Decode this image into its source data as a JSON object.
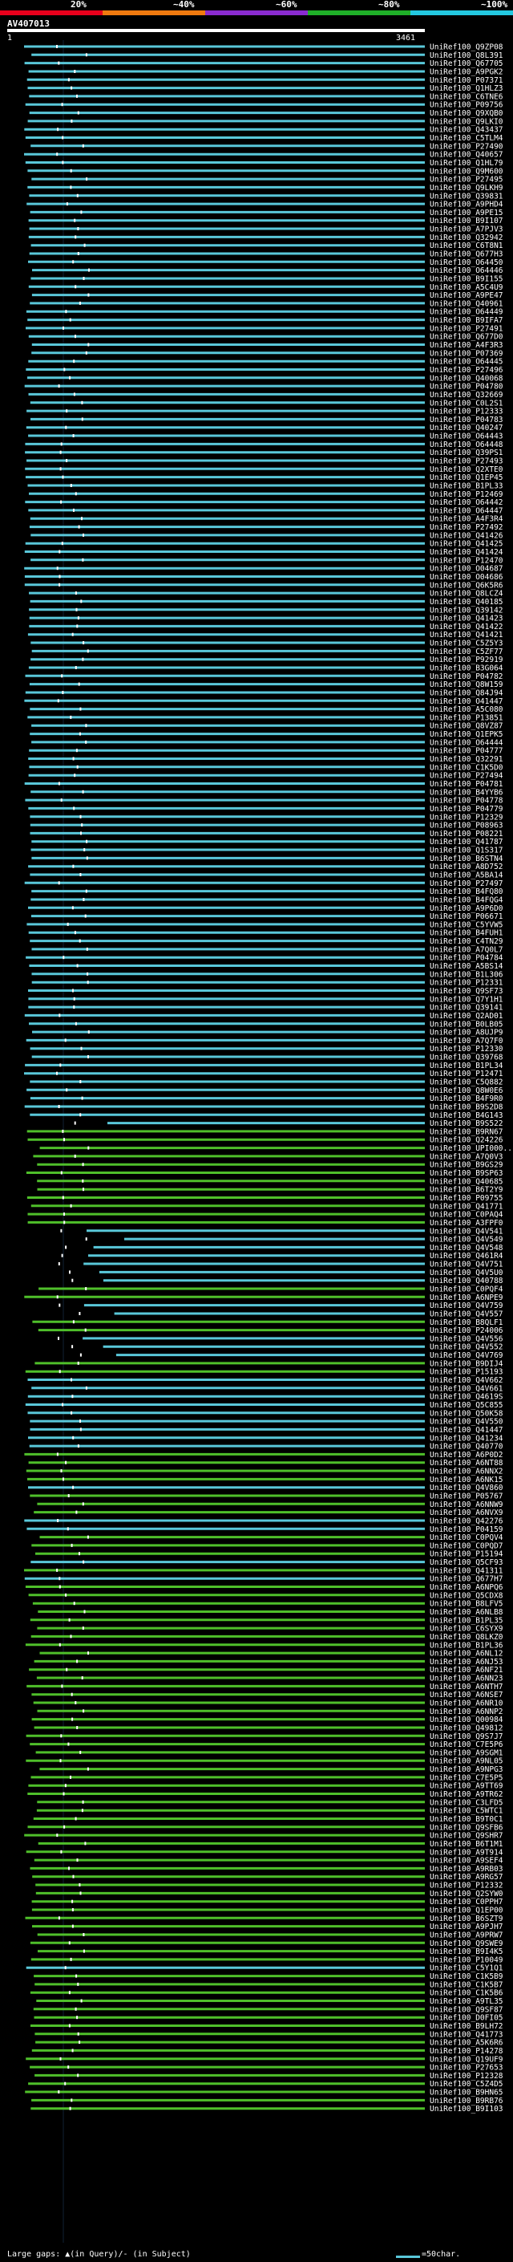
{
  "colorbar": {
    "segments": [
      {
        "label": "20%",
        "color": "#e8001c"
      },
      {
        "label": "~40%",
        "color": "#f07a0f"
      },
      {
        "label": "~60%",
        "color": "#8a2bd0"
      },
      {
        "label": "~80%",
        "color": "#1fb028"
      },
      {
        "label": "~100%",
        "color": "#23c8e0"
      }
    ]
  },
  "query": {
    "id": "AV407013",
    "start": "1",
    "end": "3461",
    "length": 3461
  },
  "hits": [
    {
      "name": "UniRef100_Q9ZP08",
      "type": "cyan"
    },
    {
      "name": "UniRef100_Q8L391",
      "type": "cyan"
    },
    {
      "name": "UniRef100_Q67705",
      "type": "cyan"
    },
    {
      "name": "UniRef100_A9PGK2",
      "type": "cyan"
    },
    {
      "name": "UniRef100_P07371",
      "type": "cyan"
    },
    {
      "name": "UniRef100_Q1HLZ3",
      "type": "cyan"
    },
    {
      "name": "UniRef100_C6TNE6",
      "type": "cyan"
    },
    {
      "name": "UniRef100_P09756",
      "type": "cyan"
    },
    {
      "name": "UniRef100_Q9XQB0",
      "type": "cyan"
    },
    {
      "name": "UniRef100_Q9LKI0",
      "type": "cyan"
    },
    {
      "name": "UniRef100_Q43437",
      "type": "cyan"
    },
    {
      "name": "UniRef100_C5TLM4",
      "type": "cyan"
    },
    {
      "name": "UniRef100_P27490",
      "type": "cyan"
    },
    {
      "name": "UniRef100_Q40657",
      "type": "cyan"
    },
    {
      "name": "UniRef100_Q1HL79",
      "type": "cyan"
    },
    {
      "name": "UniRef100_Q9M600",
      "type": "cyan"
    },
    {
      "name": "UniRef100_P27495",
      "type": "cyan"
    },
    {
      "name": "UniRef100_Q9LKH9",
      "type": "cyan"
    },
    {
      "name": "UniRef100_Q39831",
      "type": "cyan"
    },
    {
      "name": "UniRef100_A9PHD4",
      "type": "cyan"
    },
    {
      "name": "UniRef100_A9PE15",
      "type": "cyan"
    },
    {
      "name": "UniRef100_B9I107",
      "type": "cyan"
    },
    {
      "name": "UniRef100_A7PJV3",
      "type": "cyan"
    },
    {
      "name": "UniRef100_Q32942",
      "type": "cyan"
    },
    {
      "name": "UniRef100_C6T8N1",
      "type": "cyan"
    },
    {
      "name": "UniRef100_Q677H3",
      "type": "cyan"
    },
    {
      "name": "UniRef100_O64450",
      "type": "cyan"
    },
    {
      "name": "UniRef100_O64446",
      "type": "cyan"
    },
    {
      "name": "UniRef100_B9I155",
      "type": "cyan"
    },
    {
      "name": "UniRef100_A5C4U9",
      "type": "cyan"
    },
    {
      "name": "UniRef100_A9PE47",
      "type": "cyan"
    },
    {
      "name": "UniRef100_Q40961",
      "type": "cyan"
    },
    {
      "name": "UniRef100_O64449",
      "type": "cyan"
    },
    {
      "name": "UniRef100_B9IFA7",
      "type": "cyan"
    },
    {
      "name": "UniRef100_P27491",
      "type": "cyan"
    },
    {
      "name": "UniRef100_Q677D0",
      "type": "cyan"
    },
    {
      "name": "UniRef100_A4F3R3",
      "type": "cyan"
    },
    {
      "name": "UniRef100_P07369",
      "type": "cyan"
    },
    {
      "name": "UniRef100_O64445",
      "type": "cyan"
    },
    {
      "name": "UniRef100_P27496",
      "type": "cyan"
    },
    {
      "name": "UniRef100_Q40068",
      "type": "cyan"
    },
    {
      "name": "UniRef100_P04780",
      "type": "cyan"
    },
    {
      "name": "UniRef100_Q32669",
      "type": "cyan"
    },
    {
      "name": "UniRef100_C0L2S1",
      "type": "cyan"
    },
    {
      "name": "UniRef100_P12333",
      "type": "cyan"
    },
    {
      "name": "UniRef100_P04783",
      "type": "cyan"
    },
    {
      "name": "UniRef100_Q40247",
      "type": "cyan"
    },
    {
      "name": "UniRef100_O64443",
      "type": "cyan"
    },
    {
      "name": "UniRef100_O64448",
      "type": "cyan"
    },
    {
      "name": "UniRef100_Q39PS1",
      "type": "cyan"
    },
    {
      "name": "UniRef100_P27493",
      "type": "cyan"
    },
    {
      "name": "UniRef100_Q2XTE0",
      "type": "cyan"
    },
    {
      "name": "UniRef100_Q1EP45",
      "type": "cyan"
    },
    {
      "name": "UniRef100_B1PL33",
      "type": "cyan"
    },
    {
      "name": "UniRef100_P12469",
      "type": "cyan"
    },
    {
      "name": "UniRef100_O64442",
      "type": "cyan"
    },
    {
      "name": "UniRef100_O64447",
      "type": "cyan"
    },
    {
      "name": "UniRef100_A4F3R4",
      "type": "cyan"
    },
    {
      "name": "UniRef100_P27492",
      "type": "cyan"
    },
    {
      "name": "UniRef100_Q41426",
      "type": "cyan"
    },
    {
      "name": "UniRef100_Q41425",
      "type": "cyan"
    },
    {
      "name": "UniRef100_Q41424",
      "type": "cyan"
    },
    {
      "name": "UniRef100_P12470",
      "type": "cyan"
    },
    {
      "name": "UniRef100_O04687",
      "type": "cyan"
    },
    {
      "name": "UniRef100_O04686",
      "type": "cyan"
    },
    {
      "name": "UniRef100_Q6K5R6",
      "type": "cyan"
    },
    {
      "name": "UniRef100_Q8LCZ4",
      "type": "cyan"
    },
    {
      "name": "UniRef100_Q40185",
      "type": "cyan"
    },
    {
      "name": "UniRef100_Q39142",
      "type": "cyan"
    },
    {
      "name": "UniRef100_Q41423",
      "type": "cyan"
    },
    {
      "name": "UniRef100_Q41422",
      "type": "cyan"
    },
    {
      "name": "UniRef100_Q41421",
      "type": "cyan"
    },
    {
      "name": "UniRef100_C5Z5Y3",
      "type": "cyan"
    },
    {
      "name": "UniRef100_C5ZF77",
      "type": "cyan"
    },
    {
      "name": "UniRef100_P92919",
      "type": "cyan"
    },
    {
      "name": "UniRef100_B3G064",
      "type": "cyan"
    },
    {
      "name": "UniRef100_P04782",
      "type": "cyan"
    },
    {
      "name": "UniRef100_Q8W159",
      "type": "cyan"
    },
    {
      "name": "UniRef100_Q84J94",
      "type": "cyan"
    },
    {
      "name": "UniRef100_O41447",
      "type": "cyan"
    },
    {
      "name": "UniRef100_A5C080",
      "type": "cyan"
    },
    {
      "name": "UniRef100_P13851",
      "type": "cyan"
    },
    {
      "name": "UniRef100_Q8VZ87",
      "type": "cyan"
    },
    {
      "name": "UniRef100_Q1EPK5",
      "type": "cyan"
    },
    {
      "name": "UniRef100_O64444",
      "type": "cyan"
    },
    {
      "name": "UniRef100_P04777",
      "type": "cyan"
    },
    {
      "name": "UniRef100_Q32291",
      "type": "cyan"
    },
    {
      "name": "UniRef100_C1K5D0",
      "type": "cyan"
    },
    {
      "name": "UniRef100_P27494",
      "type": "cyan"
    },
    {
      "name": "UniRef100_P04781",
      "type": "cyan"
    },
    {
      "name": "UniRef100_B4YYB6",
      "type": "cyan"
    },
    {
      "name": "UniRef100_P04778",
      "type": "cyan"
    },
    {
      "name": "UniRef100_P04779",
      "type": "cyan"
    },
    {
      "name": "UniRef100_P12329",
      "type": "cyan"
    },
    {
      "name": "UniRef100_P08963",
      "type": "cyan"
    },
    {
      "name": "UniRef100_P08221",
      "type": "cyan"
    },
    {
      "name": "UniRef100_Q41787",
      "type": "cyan"
    },
    {
      "name": "UniRef100_Q1S317",
      "type": "cyan"
    },
    {
      "name": "UniRef100_B6STN4",
      "type": "cyan"
    },
    {
      "name": "UniRef100_A8D752",
      "type": "cyan"
    },
    {
      "name": "UniRef100_A5BA14",
      "type": "cyan"
    },
    {
      "name": "UniRef100_P27497",
      "type": "cyan"
    },
    {
      "name": "UniRef100_B4FQ80",
      "type": "cyan"
    },
    {
      "name": "UniRef100_B4FQG4",
      "type": "cyan"
    },
    {
      "name": "UniRef100_A9P6D0",
      "type": "cyan"
    },
    {
      "name": "UniRef100_P06671",
      "type": "cyan"
    },
    {
      "name": "UniRef100_C5YVW5",
      "type": "cyan"
    },
    {
      "name": "UniRef100_B4FUH1",
      "type": "cyan"
    },
    {
      "name": "UniRef100_C4TN29",
      "type": "cyan"
    },
    {
      "name": "UniRef100_A7Q0L7",
      "type": "cyan"
    },
    {
      "name": "UniRef100_P04784",
      "type": "cyan"
    },
    {
      "name": "UniRef100_A5BS14",
      "type": "cyan"
    },
    {
      "name": "UniRef100_B1L306",
      "type": "cyan"
    },
    {
      "name": "UniRef100_P12331",
      "type": "cyan"
    },
    {
      "name": "UniRef100_Q9SF73",
      "type": "cyan"
    },
    {
      "name": "UniRef100_Q7Y1H1",
      "type": "cyan"
    },
    {
      "name": "UniRef100_Q39141",
      "type": "cyan"
    },
    {
      "name": "UniRef100_Q2AD01",
      "type": "cyan"
    },
    {
      "name": "UniRef100_B0LB05",
      "type": "cyan"
    },
    {
      "name": "UniRef100_A8UJP9",
      "type": "cyan"
    },
    {
      "name": "UniRef100_A7Q7F0",
      "type": "cyan"
    },
    {
      "name": "UniRef100_P12330",
      "type": "cyan"
    },
    {
      "name": "UniRef100_Q39768",
      "type": "cyan"
    },
    {
      "name": "UniRef100_B1PL34",
      "type": "cyan"
    },
    {
      "name": "UniRef100_P12471",
      "type": "cyan"
    },
    {
      "name": "UniRef100_C5Q882",
      "type": "cyan"
    },
    {
      "name": "UniRef100_Q8W0E6",
      "type": "cyan"
    },
    {
      "name": "UniRef100_B4F9R0",
      "type": "cyan"
    },
    {
      "name": "UniRef100_B9S2D8",
      "type": "cyan"
    },
    {
      "name": "UniRef100_B4G143",
      "type": "cyan"
    },
    {
      "name": "UniRef100_B9S522",
      "type": "cyan"
    },
    {
      "name": "UniRef100_B9RN67",
      "type": "green"
    },
    {
      "name": "UniRef100_Q24226",
      "type": "green"
    },
    {
      "name": "UniRef100_UPI000...",
      "type": "green"
    },
    {
      "name": "UniRef100_A7Q0V3",
      "type": "green"
    },
    {
      "name": "UniRef100_B9GS29",
      "type": "green"
    },
    {
      "name": "UniRef100_B9SP63",
      "type": "green"
    },
    {
      "name": "UniRef100_Q40685",
      "type": "green"
    },
    {
      "name": "UniRef100_B6T2Y9",
      "type": "green"
    },
    {
      "name": "UniRef100_P09755",
      "type": "green"
    },
    {
      "name": "UniRef100_Q41771",
      "type": "green"
    },
    {
      "name": "UniRef100_C0PAQ4",
      "type": "green"
    },
    {
      "name": "UniRef100_A3FPF0",
      "type": "green"
    },
    {
      "name": "UniRef100_Q4V541",
      "type": "cyan"
    },
    {
      "name": "UniRef100_Q4V549",
      "type": "cyan"
    },
    {
      "name": "UniRef100_Q4V548",
      "type": "cyan"
    },
    {
      "name": "UniRef100_Q461R4",
      "type": "cyan"
    },
    {
      "name": "UniRef100_Q4V751",
      "type": "cyan"
    },
    {
      "name": "UniRef100_Q4V5U0",
      "type": "cyan"
    },
    {
      "name": "UniRef100_Q40788",
      "type": "cyan"
    },
    {
      "name": "UniRef100_C0PQF4",
      "type": "green"
    },
    {
      "name": "UniRef100_A6NPE9",
      "type": "green"
    },
    {
      "name": "UniRef100_Q4V759",
      "type": "cyan"
    },
    {
      "name": "UniRef100_Q4V557",
      "type": "cyan"
    },
    {
      "name": "UniRef100_B8QLF1",
      "type": "green"
    },
    {
      "name": "UniRef100_P24006",
      "type": "green"
    },
    {
      "name": "UniRef100_Q4V556",
      "type": "cyan"
    },
    {
      "name": "UniRef100_Q4V552",
      "type": "cyan"
    },
    {
      "name": "UniRef100_Q4V769",
      "type": "cyan"
    },
    {
      "name": "UniRef100_B9DIJ4",
      "type": "green"
    },
    {
      "name": "UniRef100_P15193",
      "type": "green"
    },
    {
      "name": "UniRef100_Q4V662",
      "type": "cyan"
    },
    {
      "name": "UniRef100_Q4V661",
      "type": "cyan"
    },
    {
      "name": "UniRef100_Q4619S",
      "type": "cyan"
    },
    {
      "name": "UniRef100_Q5C855",
      "type": "cyan"
    },
    {
      "name": "UniRef100_Q50K58",
      "type": "cyan"
    },
    {
      "name": "UniRef100_Q4V550",
      "type": "cyan"
    },
    {
      "name": "UniRef100_Q41447",
      "type": "cyan"
    },
    {
      "name": "UniRef100_Q41234",
      "type": "cyan"
    },
    {
      "name": "UniRef100_Q40770",
      "type": "cyan"
    },
    {
      "name": "UniRef100_A6P0D2",
      "type": "green"
    },
    {
      "name": "UniRef100_A6NT88",
      "type": "green"
    },
    {
      "name": "UniRef100_A6NNX2",
      "type": "green"
    },
    {
      "name": "UniRef100_A6NK15",
      "type": "green"
    },
    {
      "name": "UniRef100_Q4V860",
      "type": "cyan"
    },
    {
      "name": "UniRef100_P05767",
      "type": "green"
    },
    {
      "name": "UniRef100_A6NNW9",
      "type": "green"
    },
    {
      "name": "UniRef100_A6NVX9",
      "type": "green"
    },
    {
      "name": "UniRef100_Q42276",
      "type": "cyan"
    },
    {
      "name": "UniRef100_P04159",
      "type": "cyan"
    },
    {
      "name": "UniRef100_C0PQV4",
      "type": "green"
    },
    {
      "name": "UniRef100_C0PQD7",
      "type": "green"
    },
    {
      "name": "UniRef100_P15194",
      "type": "green"
    },
    {
      "name": "UniRef100_Q5CF93",
      "type": "cyan"
    },
    {
      "name": "UniRef100_Q41311",
      "type": "green"
    },
    {
      "name": "UniRef100_Q677H7",
      "type": "cyan"
    },
    {
      "name": "UniRef100_A6NPQ6",
      "type": "green"
    },
    {
      "name": "UniRef100_Q5CDX8",
      "type": "green"
    },
    {
      "name": "UniRef100_B8LFV5",
      "type": "green"
    },
    {
      "name": "UniRef100_A6NLB8",
      "type": "green"
    },
    {
      "name": "UniRef100_B1PL35",
      "type": "green"
    },
    {
      "name": "UniRef100_C6SYX9",
      "type": "green"
    },
    {
      "name": "UniRef100_Q8LKZ0",
      "type": "green"
    },
    {
      "name": "UniRef100_B1PL36",
      "type": "green"
    },
    {
      "name": "UniRef100_A6NL12",
      "type": "green"
    },
    {
      "name": "UniRef100_A6NJ53",
      "type": "green"
    },
    {
      "name": "UniRef100_A6NF21",
      "type": "green"
    },
    {
      "name": "UniRef100_A6NN23",
      "type": "green"
    },
    {
      "name": "UniRef100_A6NTH7",
      "type": "green"
    },
    {
      "name": "UniRef100_A6NSE7",
      "type": "green"
    },
    {
      "name": "UniRef100_A6NR10",
      "type": "green"
    },
    {
      "name": "UniRef100_A6NNP2",
      "type": "green"
    },
    {
      "name": "UniRef100_Q00984",
      "type": "green"
    },
    {
      "name": "UniRef100_Q49812",
      "type": "green"
    },
    {
      "name": "UniRef100_Q9S7J7",
      "type": "green"
    },
    {
      "name": "UniRef100_C7E5P6",
      "type": "green"
    },
    {
      "name": "UniRef100_A9SGM1",
      "type": "green"
    },
    {
      "name": "UniRef100_A9NL05",
      "type": "green"
    },
    {
      "name": "UniRef100_A9NPG3",
      "type": "green"
    },
    {
      "name": "UniRef100_C7E5P5",
      "type": "green"
    },
    {
      "name": "UniRef100_A9TT69",
      "type": "green"
    },
    {
      "name": "UniRef100_A9TR62",
      "type": "green"
    },
    {
      "name": "UniRef100_C3LFD5",
      "type": "green"
    },
    {
      "name": "UniRef100_C5WTC1",
      "type": "green"
    },
    {
      "name": "UniRef100_B9T0C1",
      "type": "green"
    },
    {
      "name": "UniRef100_Q9SFB6",
      "type": "green"
    },
    {
      "name": "UniRef100_Q9SHR7",
      "type": "green"
    },
    {
      "name": "UniRef100_B6T1M1",
      "type": "green"
    },
    {
      "name": "UniRef100_A9T914",
      "type": "green"
    },
    {
      "name": "UniRef100_A9SEF4",
      "type": "green"
    },
    {
      "name": "UniRef100_A9RB03",
      "type": "green"
    },
    {
      "name": "UniRef100_A9RG57",
      "type": "green"
    },
    {
      "name": "UniRef100_P12332",
      "type": "green"
    },
    {
      "name": "UniRef100_Q2SYW0",
      "type": "green"
    },
    {
      "name": "UniRef100_C0PPH7",
      "type": "green"
    },
    {
      "name": "UniRef100_Q1EP00",
      "type": "green"
    },
    {
      "name": "UniRef100_B6SZT9",
      "type": "green"
    },
    {
      "name": "UniRef100_A9PJH7",
      "type": "green"
    },
    {
      "name": "UniRef100_A9PRW7",
      "type": "green"
    },
    {
      "name": "UniRef100_Q9SWE9",
      "type": "green"
    },
    {
      "name": "UniRef100_B9I4K5",
      "type": "green"
    },
    {
      "name": "UniRef100_P10049",
      "type": "green"
    },
    {
      "name": "UniRef100_C5Y1Q1",
      "type": "cyan"
    },
    {
      "name": "UniRef100_C1K5B9",
      "type": "green"
    },
    {
      "name": "UniRef100_C1K5B7",
      "type": "green"
    },
    {
      "name": "UniRef100_C1K5B6",
      "type": "green"
    },
    {
      "name": "UniRef100_A9TL35",
      "type": "green"
    },
    {
      "name": "UniRef100_Q9SF87",
      "type": "green"
    },
    {
      "name": "UniRef100_D0FI05",
      "type": "green"
    },
    {
      "name": "UniRef100_B9LH72",
      "type": "green"
    },
    {
      "name": "UniRef100_Q41773",
      "type": "green"
    },
    {
      "name": "UniRef100_A5K6R6",
      "type": "green"
    },
    {
      "name": "UniRef100_P14278",
      "type": "green"
    },
    {
      "name": "UniRef100_Q19UF9",
      "type": "green"
    },
    {
      "name": "UniRef100_P27653",
      "type": "green"
    },
    {
      "name": "UniRef100_P12328",
      "type": "green"
    },
    {
      "name": "UniRef100_C5Z4D5",
      "type": "green"
    },
    {
      "name": "UniRef100_B9HN65",
      "type": "green"
    },
    {
      "name": "UniRef100_B9RB76",
      "type": "green"
    },
    {
      "name": "UniRef100_B9I103",
      "type": "green"
    }
  ],
  "footer": {
    "gaps_text": "Large gaps: ▲(in Query)/- (in Subject)",
    "legend_text": "=50char."
  }
}
